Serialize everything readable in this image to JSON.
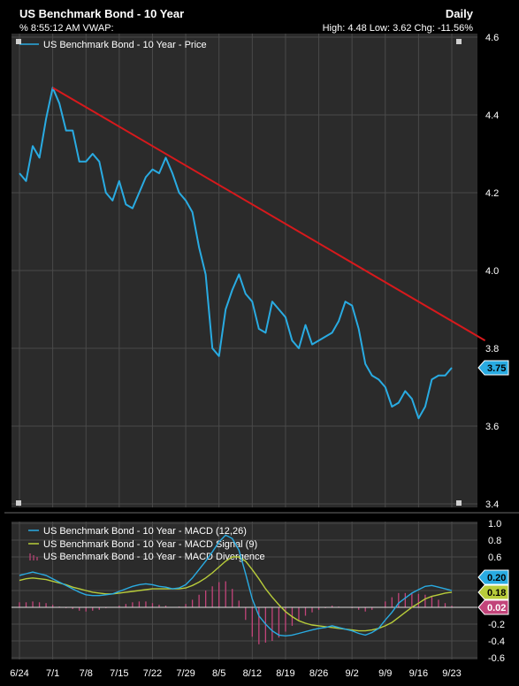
{
  "header": {
    "title": "US Benchmark Bond - 10 Year",
    "period": "Daily",
    "info_left": "% 8:55:12 AM VWAP:",
    "info_right": "High: 4.48 Low: 3.62 Chg: -11.56%"
  },
  "colors": {
    "background": "#000000",
    "panel": "#2b2b2b",
    "grid": "#4a4a4a",
    "price_line": "#29abe2",
    "trend_line": "#d7191c",
    "macd_line": "#29abe2",
    "signal_line": "#b8cc3a",
    "divergence": "#c2447a",
    "text": "#ffffff"
  },
  "chart_data": [
    {
      "type": "line",
      "title": "US Benchmark Bond - 10 Year",
      "legend": [
        "US Benchmark Bond - 10 Year - Price"
      ],
      "legend_position": "top-left",
      "ylim": [
        3.4,
        4.6
      ],
      "y_ticks": [
        "4.6",
        "4.4",
        "4.2",
        "4.0",
        "3.8",
        "3.6",
        "3.4"
      ],
      "x_ticks": [
        "6/24",
        "7/1",
        "7/8",
        "7/15",
        "7/22",
        "7/29",
        "8/5",
        "8/12",
        "8/19",
        "8/26",
        "9/2",
        "9/9",
        "9/16",
        "9/23"
      ],
      "grid": true,
      "last_value_label": "3.75",
      "series": [
        {
          "name": "US Benchmark Bond - 10 Year - Price",
          "values": [
            4.25,
            4.23,
            4.32,
            4.29,
            4.39,
            4.47,
            4.43,
            4.36,
            4.36,
            4.28,
            4.28,
            4.3,
            4.28,
            4.2,
            4.18,
            4.23,
            4.17,
            4.16,
            4.2,
            4.24,
            4.26,
            4.25,
            4.29,
            4.25,
            4.2,
            4.18,
            4.15,
            4.06,
            3.99,
            3.8,
            3.78,
            3.9,
            3.95,
            3.99,
            3.94,
            3.92,
            3.85,
            3.84,
            3.92,
            3.9,
            3.88,
            3.82,
            3.8,
            3.86,
            3.81,
            3.82,
            3.83,
            3.84,
            3.87,
            3.92,
            3.91,
            3.85,
            3.76,
            3.73,
            3.72,
            3.7,
            3.65,
            3.66,
            3.69,
            3.67,
            3.62,
            3.65,
            3.72,
            3.73,
            3.73,
            3.75
          ]
        },
        {
          "name": "Trend line",
          "x_index": [
            5,
            70
          ],
          "values": [
            4.47,
            3.82
          ]
        }
      ]
    },
    {
      "type": "line",
      "legend": [
        "US Benchmark Bond - 10 Year - MACD (12,26)",
        "US Benchmark Bond - 10 Year - MACD Signal (9)",
        "US Benchmark Bond - 10 Year - MACD Divergence"
      ],
      "legend_position": "top-left",
      "ylim": [
        -0.6,
        1.0
      ],
      "y_ticks": [
        "1.0",
        "0.8",
        "0.6",
        "0.4",
        "0.2",
        "0.0",
        "-0.2",
        "-0.4",
        "-0.6"
      ],
      "grid": true,
      "last_value_labels": {
        "macd": "0.20",
        "signal": "0.18",
        "divergence": "0.02"
      },
      "series": [
        {
          "name": "US Benchmark Bond - 10 Year - MACD (12,26)",
          "values": [
            0.38,
            0.4,
            0.42,
            0.4,
            0.38,
            0.34,
            0.3,
            0.26,
            0.22,
            0.18,
            0.15,
            0.14,
            0.14,
            0.15,
            0.16,
            0.19,
            0.22,
            0.25,
            0.27,
            0.28,
            0.27,
            0.25,
            0.24,
            0.22,
            0.23,
            0.27,
            0.35,
            0.45,
            0.55,
            0.66,
            0.78,
            0.86,
            0.82,
            0.68,
            0.4,
            0.1,
            -0.1,
            -0.2,
            -0.28,
            -0.33,
            -0.34,
            -0.33,
            -0.31,
            -0.29,
            -0.27,
            -0.25,
            -0.24,
            -0.22,
            -0.24,
            -0.26,
            -0.28,
            -0.31,
            -0.33,
            -0.3,
            -0.25,
            -0.15,
            -0.06,
            0.05,
            0.11,
            0.17,
            0.21,
            0.25,
            0.26,
            0.24,
            0.22,
            0.2
          ]
        },
        {
          "name": "US Benchmark Bond - 10 Year - MACD Signal (9)",
          "values": [
            0.32,
            0.34,
            0.35,
            0.34,
            0.33,
            0.31,
            0.29,
            0.27,
            0.24,
            0.22,
            0.2,
            0.18,
            0.17,
            0.16,
            0.16,
            0.17,
            0.18,
            0.19,
            0.2,
            0.21,
            0.22,
            0.22,
            0.22,
            0.22,
            0.22,
            0.23,
            0.26,
            0.3,
            0.35,
            0.41,
            0.48,
            0.55,
            0.6,
            0.6,
            0.55,
            0.45,
            0.34,
            0.22,
            0.12,
            0.03,
            -0.05,
            -0.11,
            -0.16,
            -0.19,
            -0.21,
            -0.22,
            -0.23,
            -0.24,
            -0.25,
            -0.26,
            -0.27,
            -0.28,
            -0.28,
            -0.27,
            -0.25,
            -0.22,
            -0.18,
            -0.12,
            -0.06,
            0.0,
            0.05,
            0.1,
            0.13,
            0.15,
            0.17,
            0.18
          ]
        },
        {
          "name": "US Benchmark Bond - 10 Year - MACD Divergence",
          "values": [
            0.06,
            0.06,
            0.07,
            0.06,
            0.05,
            0.03,
            0.01,
            -0.01,
            -0.02,
            -0.04,
            -0.05,
            -0.04,
            -0.03,
            -0.01,
            0.0,
            0.02,
            0.04,
            0.06,
            0.07,
            0.07,
            0.05,
            0.03,
            0.02,
            0.0,
            0.01,
            0.04,
            0.09,
            0.15,
            0.2,
            0.25,
            0.3,
            0.31,
            0.22,
            0.08,
            -0.15,
            -0.35,
            -0.44,
            -0.42,
            -0.4,
            -0.36,
            -0.29,
            -0.22,
            -0.15,
            -0.1,
            -0.06,
            -0.03,
            -0.01,
            0.02,
            0.01,
            0.0,
            -0.01,
            -0.03,
            -0.05,
            -0.03,
            0.0,
            0.07,
            0.12,
            0.17,
            0.17,
            0.17,
            0.16,
            0.15,
            0.13,
            0.09,
            0.05,
            0.02
          ]
        }
      ]
    }
  ]
}
